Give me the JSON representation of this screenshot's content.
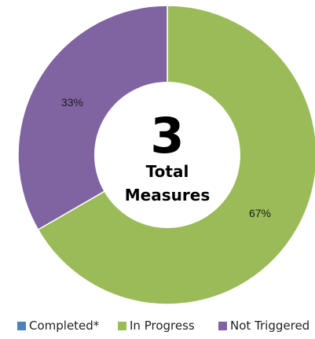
{
  "chart_data": {
    "type": "pie",
    "variant": "donut",
    "series": [
      {
        "name": "Completed*",
        "value": 0,
        "percent_label": "",
        "color": "#4f81bd"
      },
      {
        "name": "In Progress",
        "value": 2,
        "percent_label": "67%",
        "color": "#9bbb59"
      },
      {
        "name": "Not Triggered",
        "value": 1,
        "percent_label": "33%",
        "color": "#8064a2"
      }
    ],
    "center": {
      "count": "3",
      "line1": "Total",
      "line2": "Measures"
    },
    "legend_position": "bottom",
    "legend": {
      "items": [
        "Completed*",
        "In Progress",
        "Not Triggered"
      ]
    }
  }
}
